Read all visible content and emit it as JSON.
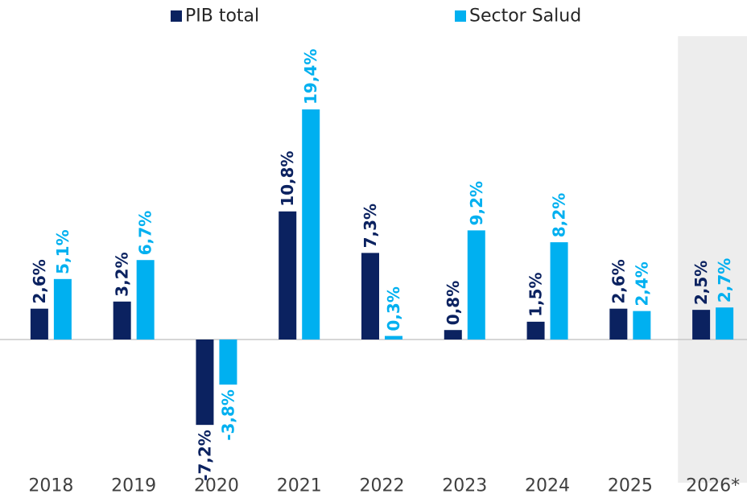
{
  "chart_data": {
    "type": "bar",
    "categories": [
      "2018",
      "2019",
      "2020",
      "2021",
      "2022",
      "2023",
      "2024",
      "2025",
      "2026*"
    ],
    "series": [
      {
        "name": "PIB total",
        "color": "#0b2260",
        "values": [
          2.6,
          3.2,
          -7.2,
          10.8,
          7.3,
          0.8,
          1.5,
          2.6,
          2.5
        ],
        "value_labels": [
          "2,6%",
          "3,2%",
          "-7,2%",
          "10,8%",
          "7,3%",
          "0,8%",
          "1,5%",
          "2,6%",
          "2,5%"
        ]
      },
      {
        "name": "Sector Salud",
        "color": "#00b0f0",
        "values": [
          5.1,
          6.7,
          -3.8,
          19.4,
          0.3,
          9.2,
          8.2,
          2.4,
          2.7
        ],
        "value_labels": [
          "5,1%",
          "6,7%",
          "-3,8%",
          "19,4%",
          "0,3%",
          "9,2%",
          "8,2%",
          "2,4%",
          "2,7%"
        ]
      }
    ],
    "legend": "top"
  }
}
